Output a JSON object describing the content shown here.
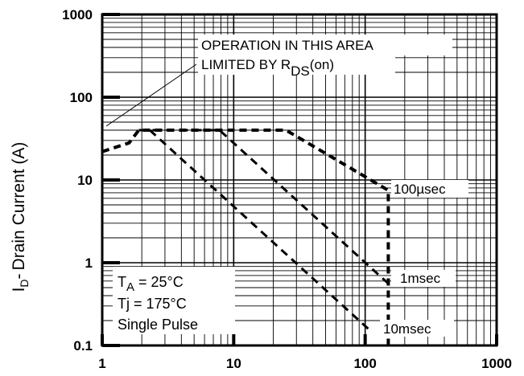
{
  "chart_data": {
    "type": "line",
    "title": "",
    "xlabel": "",
    "ylabel": "Drain Current (A)",
    "ylabel_symbol": "I",
    "ylabel_subscript": "D",
    "ylabel_dash": "-",
    "x_scale": "log",
    "y_scale": "log",
    "xlim": [
      1,
      1000
    ],
    "ylim": [
      0.1,
      1000
    ],
    "x_ticks": [
      "1",
      "10",
      "100",
      "1000"
    ],
    "y_ticks": [
      "0.1",
      "1",
      "10",
      "100",
      "1000"
    ],
    "grid": true,
    "series": [
      {
        "name": "100µsec",
        "style": "dashed",
        "x": [
          1,
          1.6,
          1.9,
          25,
          150,
          150
        ],
        "y": [
          22,
          28,
          40,
          40,
          7.5,
          0.1
        ]
      },
      {
        "name": "1msec",
        "style": "dashed",
        "x": [
          1.9,
          7.8,
          150
        ],
        "y": [
          40,
          40,
          0.56
        ]
      },
      {
        "name": "10msec",
        "style": "dashed",
        "x": [
          2.3,
          110
        ],
        "y": [
          40,
          0.15
        ]
      }
    ],
    "labels": {
      "series_100us": "100µsec",
      "series_1ms": "1msec",
      "series_10ms": "10msec",
      "area_line1": "OPERATION IN THIS AREA",
      "area_line2_prefix": "LIMITED BY R",
      "area_line2_sub": "DS",
      "area_line2_suffix": "(on)"
    },
    "conditions": {
      "ta_main": "T",
      "ta_sub": "A",
      "ta_rest": " = 25°C",
      "tj": "Tj = 175°C",
      "pulse": "Single Pulse"
    }
  }
}
